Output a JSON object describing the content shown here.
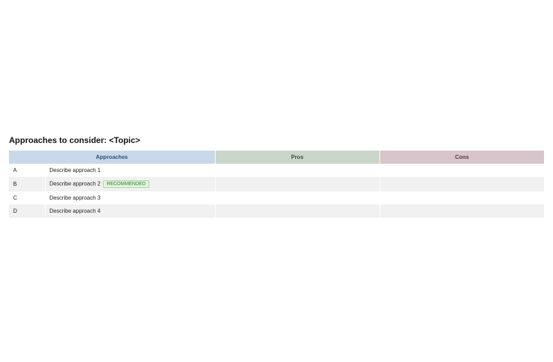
{
  "title": "Approaches to consider: <Topic>",
  "columns": {
    "approaches": {
      "label": "Approaches",
      "bg": "#c9d8e8",
      "text": "#2b4f7a"
    },
    "pros": {
      "label": "Pros",
      "bg": "#cad6ca",
      "text": "#3a4a3a"
    },
    "cons": {
      "label": "Cons",
      "bg": "#d7c5c9",
      "text": "#5a3a42"
    }
  },
  "row_colors": {
    "odd_bg": "#ffffff",
    "even_bg": "#f1f1f1"
  },
  "badge": {
    "label": "RECOMMENDED",
    "bg": "#e3f4de",
    "text": "#2e7d32",
    "border": "#a6d99a"
  },
  "rows": [
    {
      "letter": "A",
      "desc": "Describe approach 1",
      "recommended": false,
      "pros": "",
      "cons": ""
    },
    {
      "letter": "B",
      "desc": "Describe approach 2",
      "recommended": true,
      "pros": "",
      "cons": ""
    },
    {
      "letter": "C",
      "desc": "Describe approach 3",
      "recommended": false,
      "pros": "",
      "cons": ""
    },
    {
      "letter": "D",
      "desc": "Describe approach 4",
      "recommended": false,
      "pros": "",
      "cons": ""
    }
  ]
}
